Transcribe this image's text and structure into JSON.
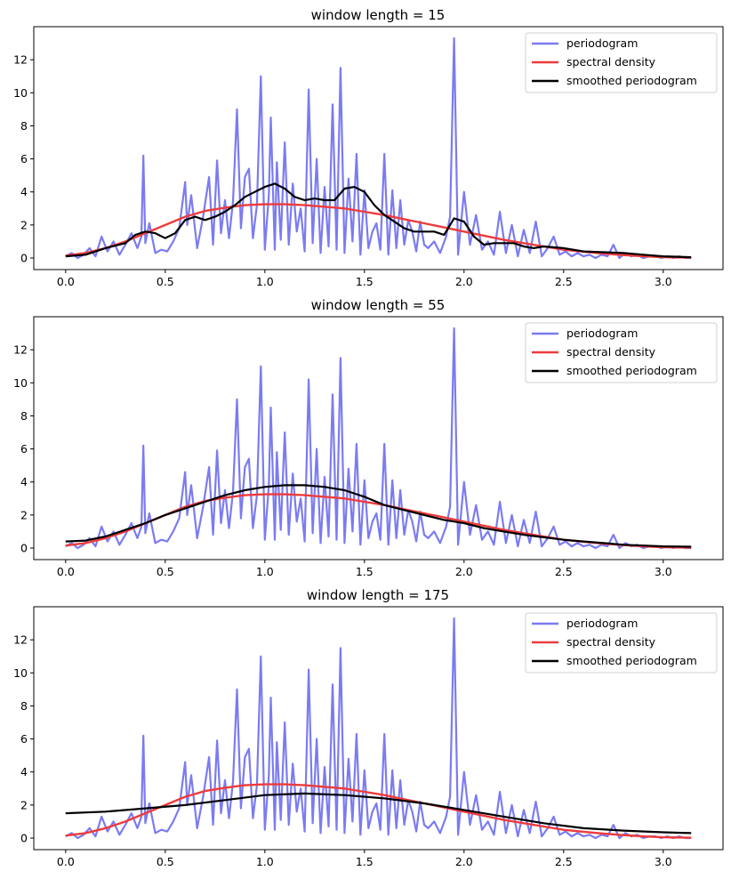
{
  "colors": {
    "periodogram": "#7b7bf2",
    "spectral_density": "#ee3b3b",
    "smoothed": "#000000"
  },
  "chart_data": [
    {
      "type": "line",
      "title": "window length = 15",
      "xlim": [
        -0.16,
        3.3
      ],
      "ylim": [
        -0.7,
        14.0
      ],
      "xticks": [
        0.0,
        0.5,
        1.0,
        1.5,
        2.0,
        2.5,
        3.0
      ],
      "xtick_labels": [
        "0.0",
        "0.5",
        "1.0",
        "1.5",
        "2.0",
        "2.5",
        "3.0"
      ],
      "yticks": [
        0,
        2,
        4,
        6,
        8,
        10,
        12
      ],
      "ytick_labels": [
        "0",
        "2",
        "4",
        "6",
        "8",
        "10",
        "12"
      ],
      "legend": [
        "periodogram",
        "spectral density",
        "smoothed periodogram"
      ],
      "legend_position": "top-right",
      "series": [
        {
          "name": "smoothed periodogram",
          "x": [
            0.0,
            0.1,
            0.2,
            0.3,
            0.35,
            0.4,
            0.45,
            0.5,
            0.55,
            0.6,
            0.65,
            0.7,
            0.75,
            0.8,
            0.85,
            0.9,
            0.95,
            1.0,
            1.05,
            1.1,
            1.15,
            1.2,
            1.25,
            1.3,
            1.35,
            1.4,
            1.45,
            1.5,
            1.55,
            1.6,
            1.65,
            1.7,
            1.75,
            1.8,
            1.85,
            1.9,
            1.95,
            2.0,
            2.05,
            2.1,
            2.15,
            2.2,
            2.25,
            2.3,
            2.35,
            2.4,
            2.5,
            2.6,
            2.7,
            2.8,
            2.9,
            3.0,
            3.14
          ],
          "y": [
            0.1,
            0.2,
            0.6,
            0.9,
            1.4,
            1.6,
            1.5,
            1.2,
            1.5,
            2.3,
            2.5,
            2.3,
            2.5,
            2.8,
            3.2,
            3.7,
            4.0,
            4.3,
            4.5,
            4.2,
            3.7,
            3.5,
            3.6,
            3.5,
            3.5,
            4.2,
            4.3,
            4.0,
            3.2,
            2.6,
            2.2,
            1.8,
            1.6,
            1.6,
            1.6,
            1.4,
            2.4,
            2.2,
            1.3,
            0.8,
            0.9,
            0.9,
            0.9,
            0.7,
            0.6,
            0.7,
            0.6,
            0.4,
            0.35,
            0.3,
            0.2,
            0.1,
            0.05
          ]
        }
      ]
    },
    {
      "type": "line",
      "title": "window length = 55",
      "xlim": [
        -0.16,
        3.3
      ],
      "ylim": [
        -0.7,
        14.0
      ],
      "xticks": [
        0.0,
        0.5,
        1.0,
        1.5,
        2.0,
        2.5,
        3.0
      ],
      "xtick_labels": [
        "0.0",
        "0.5",
        "1.0",
        "1.5",
        "2.0",
        "2.5",
        "3.0"
      ],
      "yticks": [
        0,
        2,
        4,
        6,
        8,
        10,
        12
      ],
      "ytick_labels": [
        "0",
        "2",
        "4",
        "6",
        "8",
        "10",
        "12"
      ],
      "legend": [
        "periodogram",
        "spectral density",
        "smoothed periodogram"
      ],
      "legend_position": "top-right",
      "series": [
        {
          "name": "smoothed periodogram",
          "x": [
            0.0,
            0.1,
            0.2,
            0.3,
            0.4,
            0.5,
            0.6,
            0.7,
            0.8,
            0.9,
            1.0,
            1.1,
            1.2,
            1.3,
            1.4,
            1.5,
            1.6,
            1.7,
            1.8,
            1.9,
            2.0,
            2.1,
            2.2,
            2.3,
            2.4,
            2.5,
            2.6,
            2.7,
            2.8,
            2.9,
            3.0,
            3.14
          ],
          "y": [
            0.4,
            0.45,
            0.7,
            1.1,
            1.5,
            2.0,
            2.4,
            2.8,
            3.2,
            3.5,
            3.7,
            3.8,
            3.8,
            3.7,
            3.5,
            3.1,
            2.6,
            2.3,
            2.0,
            1.7,
            1.5,
            1.2,
            1.0,
            0.8,
            0.65,
            0.5,
            0.4,
            0.3,
            0.2,
            0.15,
            0.1,
            0.08
          ]
        }
      ]
    },
    {
      "type": "line",
      "title": "window length = 175",
      "xlim": [
        -0.16,
        3.3
      ],
      "ylim": [
        -0.7,
        14.0
      ],
      "xticks": [
        0.0,
        0.5,
        1.0,
        1.5,
        2.0,
        2.5,
        3.0
      ],
      "xtick_labels": [
        "0.0",
        "0.5",
        "1.0",
        "1.5",
        "2.0",
        "2.5",
        "3.0"
      ],
      "yticks": [
        0,
        2,
        4,
        6,
        8,
        10,
        12
      ],
      "ytick_labels": [
        "0",
        "2",
        "4",
        "6",
        "8",
        "10",
        "12"
      ],
      "legend": [
        "periodogram",
        "spectral density",
        "smoothed periodogram"
      ],
      "legend_position": "top-right",
      "series": [
        {
          "name": "smoothed periodogram",
          "x": [
            0.0,
            0.2,
            0.4,
            0.6,
            0.8,
            1.0,
            1.2,
            1.4,
            1.6,
            1.8,
            2.0,
            2.2,
            2.4,
            2.6,
            2.8,
            3.0,
            3.14
          ],
          "y": [
            1.5,
            1.6,
            1.8,
            2.0,
            2.3,
            2.6,
            2.7,
            2.6,
            2.4,
            2.1,
            1.7,
            1.3,
            0.9,
            0.6,
            0.45,
            0.35,
            0.3
          ]
        }
      ]
    }
  ],
  "shared_series": {
    "spectral_density": {
      "name": "spectral density",
      "x": [
        0.0,
        0.1,
        0.2,
        0.3,
        0.4,
        0.5,
        0.6,
        0.7,
        0.8,
        0.9,
        1.0,
        1.1,
        1.2,
        1.3,
        1.4,
        1.5,
        1.6,
        1.7,
        1.8,
        1.9,
        2.0,
        2.1,
        2.2,
        2.3,
        2.4,
        2.5,
        2.6,
        2.7,
        2.8,
        2.9,
        3.0,
        3.14
      ],
      "y": [
        0.15,
        0.3,
        0.6,
        1.0,
        1.5,
        2.0,
        2.5,
        2.85,
        3.05,
        3.2,
        3.25,
        3.25,
        3.2,
        3.1,
        3.0,
        2.8,
        2.6,
        2.35,
        2.1,
        1.85,
        1.6,
        1.35,
        1.1,
        0.9,
        0.7,
        0.5,
        0.38,
        0.27,
        0.18,
        0.1,
        0.05,
        0.02
      ]
    },
    "periodogram": {
      "name": "periodogram",
      "x": [
        0.0,
        0.03,
        0.06,
        0.09,
        0.12,
        0.15,
        0.18,
        0.21,
        0.24,
        0.27,
        0.3,
        0.33,
        0.36,
        0.38,
        0.39,
        0.4,
        0.42,
        0.45,
        0.48,
        0.51,
        0.54,
        0.57,
        0.6,
        0.61,
        0.63,
        0.66,
        0.69,
        0.72,
        0.74,
        0.76,
        0.78,
        0.8,
        0.82,
        0.84,
        0.86,
        0.88,
        0.9,
        0.92,
        0.94,
        0.96,
        0.98,
        1.0,
        1.02,
        1.03,
        1.05,
        1.06,
        1.08,
        1.1,
        1.12,
        1.14,
        1.16,
        1.18,
        1.2,
        1.22,
        1.24,
        1.26,
        1.28,
        1.3,
        1.32,
        1.34,
        1.36,
        1.38,
        1.4,
        1.42,
        1.44,
        1.46,
        1.48,
        1.5,
        1.52,
        1.54,
        1.56,
        1.58,
        1.6,
        1.62,
        1.64,
        1.66,
        1.68,
        1.7,
        1.72,
        1.74,
        1.76,
        1.78,
        1.8,
        1.82,
        1.85,
        1.88,
        1.91,
        1.93,
        1.95,
        1.97,
        2.0,
        2.03,
        2.06,
        2.09,
        2.12,
        2.15,
        2.18,
        2.21,
        2.24,
        2.27,
        2.3,
        2.33,
        2.36,
        2.39,
        2.42,
        2.45,
        2.48,
        2.51,
        2.54,
        2.57,
        2.6,
        2.63,
        2.66,
        2.69,
        2.72,
        2.75,
        2.78,
        2.81,
        2.84,
        2.87,
        2.9,
        2.93,
        2.96,
        2.99,
        3.02,
        3.05,
        3.08,
        3.11,
        3.14
      ],
      "y": [
        0.1,
        0.3,
        0.0,
        0.2,
        0.6,
        0.1,
        1.3,
        0.4,
        1.0,
        0.2,
        0.8,
        1.5,
        0.6,
        1.3,
        6.2,
        0.9,
        2.1,
        0.3,
        0.5,
        0.4,
        1.0,
        1.8,
        4.6,
        2.0,
        3.8,
        0.6,
        2.5,
        4.9,
        0.8,
        5.9,
        1.5,
        3.5,
        1.2,
        3.4,
        9.0,
        1.8,
        4.9,
        5.4,
        1.2,
        3.2,
        11.0,
        0.5,
        3.8,
        8.5,
        0.5,
        5.8,
        1.1,
        7.0,
        0.8,
        4.5,
        1.6,
        3.0,
        0.4,
        10.2,
        0.9,
        6.0,
        0.3,
        4.3,
        0.7,
        9.3,
        0.5,
        11.5,
        0.3,
        4.8,
        1.0,
        6.3,
        0.2,
        4.1,
        0.6,
        1.6,
        2.1,
        0.5,
        6.3,
        0.2,
        4.1,
        0.6,
        3.5,
        0.8,
        2.3,
        1.6,
        0.4,
        2.2,
        0.8,
        0.6,
        1.0,
        0.3,
        1.3,
        2.5,
        13.3,
        0.2,
        4.0,
        0.8,
        2.6,
        0.5,
        1.0,
        0.2,
        2.8,
        0.3,
        2.0,
        0.1,
        1.7,
        0.3,
        2.2,
        0.1,
        0.6,
        1.3,
        0.2,
        0.4,
        0.1,
        0.3,
        0.1,
        0.2,
        0.0,
        0.2,
        0.1,
        0.8,
        0.0,
        0.3,
        0.1,
        0.2,
        0.0,
        0.1,
        0.1,
        0.0,
        0.1,
        0.0,
        0.1,
        0.0,
        0.0
      ]
    }
  }
}
